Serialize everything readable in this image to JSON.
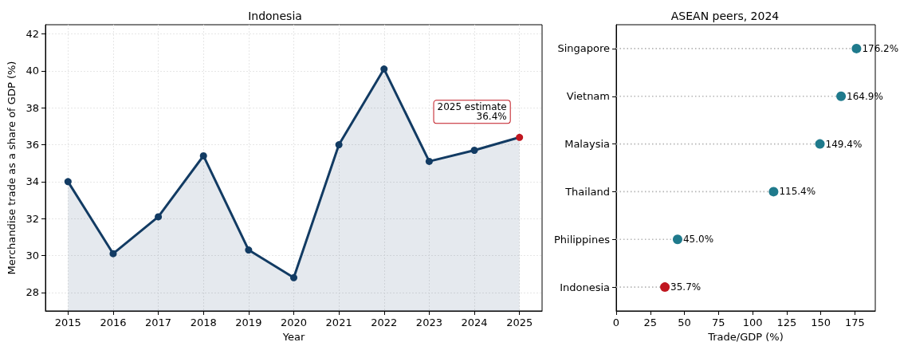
{
  "chart_data": [
    {
      "type": "area",
      "title": "Indonesia",
      "xlabel": "Year",
      "ylabel": "Merchandise trade as a share of GDP (%)",
      "x": [
        2015,
        2016,
        2017,
        2018,
        2019,
        2020,
        2021,
        2022,
        2023,
        2024,
        2025
      ],
      "series": [
        {
          "color": "#123b63",
          "values": [
            34.0,
            30.1,
            32.1,
            35.4,
            30.3,
            28.8,
            36.0,
            40.1,
            35.1,
            35.7,
            36.4
          ],
          "colors": [
            "#123b63",
            "#123b63",
            "#123b63",
            "#123b63",
            "#123b63",
            "#123b63",
            "#123b63",
            "#123b63",
            "#123b63",
            "#123b63",
            "#c0161f"
          ]
        }
      ],
      "xlim": [
        2014.5,
        2025.5
      ],
      "xticks": [
        2015,
        2016,
        2017,
        2018,
        2019,
        2020,
        2021,
        2022,
        2023,
        2024,
        2025
      ],
      "ylim": [
        27,
        42.5
      ],
      "yticks": [
        28,
        30,
        32,
        34,
        36,
        38,
        40,
        42
      ],
      "annotations": [
        {
          "text": "2025 estimate\n36.4%",
          "x": 2025,
          "y": 36.4
        }
      ],
      "grid": true,
      "marker": "circle",
      "line_style": "solid"
    },
    {
      "type": "lollipop",
      "title": "ASEAN peers, 2024",
      "xlabel": "Trade/GDP (%)",
      "orientation": "horizontal",
      "categories": [
        "Singapore",
        "Vietnam",
        "Malaysia",
        "Thailand",
        "Philippines",
        "Indonesia"
      ],
      "values": [
        176.2,
        164.9,
        149.4,
        115.4,
        45.0,
        35.7
      ],
      "colors": [
        "#1f7a8c",
        "#1f7a8c",
        "#1f7a8c",
        "#1f7a8c",
        "#1f7a8c",
        "#c0161f"
      ],
      "value_labels": [
        "176.2%",
        "164.9%",
        "149.4%",
        "115.4%",
        "45.0%",
        "35.7%"
      ],
      "xlim": [
        0,
        190
      ],
      "xticks": [
        0,
        25,
        50,
        75,
        100,
        125,
        150,
        175
      ],
      "marker": "circle",
      "line_style": "dotted"
    }
  ]
}
